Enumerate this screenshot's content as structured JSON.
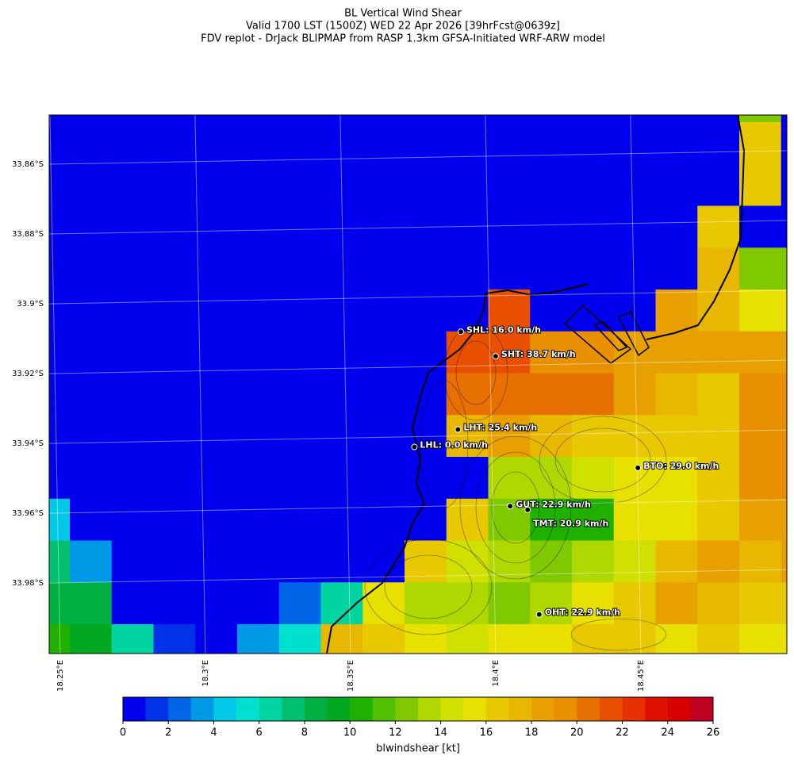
{
  "chart_data": {
    "type": "map",
    "title": [
      "BL Vertical Wind Shear",
      "Valid 1700 LST (1500Z) WED 22 Apr 2026 [39hrFcst@0639z]",
      "FDV replot - DrJack BLIPMAP from RASP 1.3km GFSA-Initiated WRF-ARW model"
    ],
    "lon_lim": [
      18.2462,
      18.5003
    ],
    "lat_lim": [
      -34.0002,
      -33.8459
    ],
    "lat_ticks": [
      {
        "value": -33.86,
        "label": "33.86°S"
      },
      {
        "value": -33.88,
        "label": "33.88°S"
      },
      {
        "value": -33.9,
        "label": "33.9°S"
      },
      {
        "value": -33.92,
        "label": "33.92°S"
      },
      {
        "value": -33.94,
        "label": "33.94°S"
      },
      {
        "value": -33.96,
        "label": "33.96°S"
      },
      {
        "value": -33.98,
        "label": "33.98°S"
      }
    ],
    "lon_ticks": [
      {
        "value": 18.25,
        "label": "18.25°E"
      },
      {
        "value": 18.3,
        "label": "18.3°E"
      },
      {
        "value": 18.35,
        "label": "18.35°E"
      },
      {
        "value": 18.4,
        "label": "18.4°E"
      },
      {
        "value": 18.45,
        "label": "18.45°E"
      }
    ],
    "grid": [
      [
        0,
        0,
        0,
        0,
        0,
        0,
        0,
        0,
        0,
        0,
        0,
        0,
        0,
        0,
        0,
        0,
        0,
        12.5,
        0
      ],
      [
        0,
        0,
        0,
        0,
        0,
        0,
        0,
        0,
        0,
        0,
        0,
        0,
        0,
        0,
        0,
        0,
        0,
        16.5,
        0
      ],
      [
        0,
        0,
        0,
        0,
        0,
        0,
        0,
        0,
        0,
        0,
        0,
        0,
        0,
        0,
        0,
        0,
        0,
        16.5,
        0
      ],
      [
        0,
        0,
        0,
        0,
        0,
        0,
        0,
        0,
        0,
        0,
        0,
        0,
        0,
        0,
        0,
        0,
        16.5,
        0,
        0
      ],
      [
        0,
        0,
        0,
        0,
        0,
        0,
        0,
        0,
        0,
        0,
        0,
        0,
        0,
        0,
        0,
        0,
        17.5,
        12.5,
        12.5
      ],
      [
        0,
        0,
        0,
        0,
        0,
        0,
        0,
        0,
        0,
        0,
        0,
        21.5,
        0,
        0,
        0,
        18.5,
        17.5,
        15.5,
        15.5
      ],
      [
        0,
        0,
        0,
        0,
        0,
        0,
        0,
        0,
        0,
        0,
        21.5,
        21.5,
        19.5,
        19.5,
        18.5,
        18.5,
        18.5,
        18.5,
        18.5
      ],
      [
        0,
        0,
        0,
        0,
        0,
        0,
        0,
        0,
        0,
        0,
        20.5,
        20.5,
        20.5,
        20.5,
        18.5,
        17.5,
        16.5,
        19.5,
        19.5
      ],
      [
        0,
        0,
        0,
        0,
        0,
        0,
        0,
        0,
        0,
        0,
        17.5,
        18.5,
        17.5,
        16.5,
        16.5,
        16.5,
        16.5,
        19.5,
        19.5
      ],
      [
        0,
        0,
        0,
        0,
        0,
        0,
        0,
        0,
        0,
        0,
        0,
        13.5,
        13.5,
        14.5,
        15.5,
        15.5,
        16.5,
        19.5,
        19.5
      ],
      [
        4.5,
        0,
        0,
        0,
        0,
        0,
        0,
        0,
        0,
        0,
        16.5,
        12.5,
        10.5,
        10.5,
        15.5,
        15.5,
        16.5,
        18.5,
        18.5
      ],
      [
        7.5,
        3.5,
        0,
        0,
        0,
        0,
        0,
        0,
        0,
        16.5,
        14.5,
        13.5,
        12.5,
        13.5,
        14.5,
        17.5,
        18.5,
        17.5,
        18.5
      ],
      [
        8.5,
        8.5,
        0,
        0,
        0,
        0,
        2.5,
        6.5,
        15.5,
        13.5,
        13.5,
        12.5,
        13.5,
        15.5,
        16.5,
        18.5,
        17.5,
        16.5,
        16.5
      ],
      [
        10.5,
        9.5,
        6.5,
        1.5,
        0,
        3.5,
        5.5,
        17.5,
        16.5,
        15.5,
        14.5,
        15.5,
        15.5,
        16.5,
        16.5,
        15.5,
        16.5,
        15.5,
        15.5
      ]
    ],
    "stations": [
      {
        "label": "SHL: 16.0 km/h",
        "lon": 18.388,
        "lat": -33.908
      },
      {
        "label": "SHT: 38.7 km/h",
        "lon": 18.4,
        "lat": -33.915
      },
      {
        "label": "LHT: 25.4 km/h",
        "lon": 18.387,
        "lat": -33.936
      },
      {
        "label": "LHL: 0.0 km/h",
        "lon": 18.372,
        "lat": -33.941
      },
      {
        "label": "BTO: 29.0 km/h",
        "lon": 18.449,
        "lat": -33.947
      },
      {
        "label": "GUT: 22.9 km/h",
        "lon": 18.405,
        "lat": -33.958
      },
      {
        "label": "TMT: 20.9 km/h",
        "lon": 18.411,
        "lat": -33.959
      },
      {
        "label": "OHT: 22.9 km/h",
        "lon": 18.415,
        "lat": -33.989
      }
    ],
    "colorbar": {
      "label": "blwindshear [kt]",
      "lim": [
        0,
        26
      ],
      "ticks": [
        0,
        2,
        4,
        6,
        8,
        10,
        12,
        14,
        16,
        18,
        20,
        22,
        24,
        26
      ],
      "colors": [
        "#0000ee",
        "#0033e8",
        "#0066e8",
        "#0099e6",
        "#00c8e6",
        "#00e0d0",
        "#00d4a0",
        "#00c070",
        "#00b040",
        "#00a820",
        "#20b000",
        "#50c000",
        "#80c800",
        "#b0d800",
        "#d0e000",
        "#e8e000",
        "#e8c800",
        "#e8b800",
        "#e8a000",
        "#e89000",
        "#e87000",
        "#e85000",
        "#e83000",
        "#e01000",
        "#d80000",
        "#c00020"
      ]
    }
  }
}
